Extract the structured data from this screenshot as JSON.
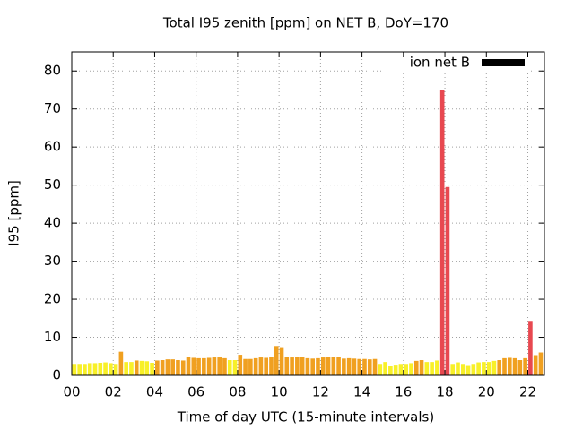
{
  "chart_data": {
    "type": "bar",
    "title": "Total I95 zenith [ppm] on NET B, DoY=170",
    "xlabel": "Time of day UTC (15-minute intervals)",
    "ylabel": "I95 [ppm]",
    "xlim": [
      0,
      22.8
    ],
    "ylim": [
      0,
      85
    ],
    "xticks": [
      {
        "value": 0,
        "label": "00"
      },
      {
        "value": 2,
        "label": "02"
      },
      {
        "value": 4,
        "label": "04"
      },
      {
        "value": 6,
        "label": "06"
      },
      {
        "value": 8,
        "label": "08"
      },
      10,
      12,
      14,
      16,
      18,
      20,
      22
    ],
    "yticks": [
      0,
      10,
      20,
      30,
      40,
      50,
      60,
      70,
      80
    ],
    "grid": true,
    "legend": "top right",
    "bar_width": 0.25,
    "x": [
      0,
      0.25,
      0.5,
      0.75,
      1,
      1.25,
      1.5,
      1.75,
      2,
      2.25,
      2.5,
      2.75,
      3,
      3.25,
      3.5,
      3.75,
      4,
      4.25,
      4.5,
      4.75,
      5,
      5.25,
      5.5,
      5.75,
      6,
      6.25,
      6.5,
      6.75,
      7,
      7.25,
      7.5,
      7.75,
      8,
      8.25,
      8.5,
      8.75,
      9,
      9.25,
      9.5,
      9.75,
      10,
      10.25,
      10.5,
      10.75,
      11,
      11.25,
      11.5,
      11.75,
      12,
      12.25,
      12.5,
      12.75,
      13,
      13.25,
      13.5,
      13.75,
      14,
      14.25,
      14.5,
      14.75,
      15,
      15.25,
      15.5,
      15.75,
      16,
      16.25,
      16.5,
      16.75,
      17,
      17.25,
      17.5,
      17.75,
      18,
      18.25,
      18.5,
      18.75,
      19,
      19.25,
      19.5,
      19.75,
      20,
      20.25,
      20.5,
      20.75,
      21,
      21.25,
      21.5,
      21.75,
      22,
      22.25,
      22.5,
      22.75
    ],
    "series": [
      {
        "name": "ion net B",
        "color": "#000000",
        "values": [
          3.0,
          3.0,
          3.0,
          3.2,
          3.2,
          3.3,
          3.4,
          3.2,
          3.0,
          6.2,
          3.5,
          3.5,
          3.9,
          3.8,
          3.7,
          3.3,
          3.9,
          4.0,
          4.2,
          4.2,
          4.0,
          3.9,
          4.9,
          4.6,
          4.5,
          4.5,
          4.6,
          4.7,
          4.7,
          4.5,
          4.0,
          4.0,
          5.4,
          4.3,
          4.3,
          4.5,
          4.7,
          4.6,
          4.9,
          7.7,
          7.4,
          4.8,
          4.7,
          4.8,
          4.9,
          4.5,
          4.4,
          4.5,
          4.7,
          4.8,
          4.8,
          4.9,
          4.4,
          4.5,
          4.4,
          4.3,
          4.3,
          4.2,
          4.3,
          3.0,
          3.5,
          2.5,
          2.8,
          3.0,
          3.0,
          3.2,
          3.8,
          4.0,
          3.5,
          3.5,
          3.9,
          75.0,
          49.5,
          3.0,
          3.4,
          3.0,
          2.7,
          3.0,
          3.4,
          3.5,
          3.5,
          3.8,
          4.0,
          4.5,
          4.6,
          4.5,
          4.0,
          4.5,
          14.3,
          5.3,
          6.0,
          4.3
        ],
        "colors": [
          "#f8f028",
          "#f8f028",
          "#f8f028",
          "#f8f028",
          "#f8f028",
          "#f8f028",
          "#f8f028",
          "#f8f028",
          "#f8f028",
          "#f0a020",
          "#f8f028",
          "#f8f028",
          "#f0a020",
          "#f8f028",
          "#f8f028",
          "#f8f028",
          "#f0a020",
          "#f0a020",
          "#f0a020",
          "#f0a020",
          "#f0a020",
          "#f0a020",
          "#f0a020",
          "#f0a020",
          "#f0a020",
          "#f0a020",
          "#f0a020",
          "#f0a020",
          "#f0a020",
          "#f0a020",
          "#f8f028",
          "#f8f028",
          "#f0a020",
          "#f0a020",
          "#f0a020",
          "#f0a020",
          "#f0a020",
          "#f0a020",
          "#f0a020",
          "#f0a020",
          "#f0a020",
          "#f0a020",
          "#f0a020",
          "#f0a020",
          "#f0a020",
          "#f0a020",
          "#f0a020",
          "#f0a020",
          "#f0a020",
          "#f0a020",
          "#f0a020",
          "#f0a020",
          "#f0a020",
          "#f0a020",
          "#f0a020",
          "#f0a020",
          "#f0a020",
          "#f0a020",
          "#f0a020",
          "#f8f028",
          "#f8f028",
          "#f8f028",
          "#f8f028",
          "#f8f028",
          "#f8f028",
          "#f8f028",
          "#f0a020",
          "#f0a020",
          "#f8f028",
          "#f8f028",
          "#f8f028",
          "#e84850",
          "#e84850",
          "#f8f028",
          "#f8f028",
          "#f8f028",
          "#f8f028",
          "#f8f028",
          "#f8f028",
          "#f8f028",
          "#f8f028",
          "#f8f028",
          "#f0a020",
          "#f0a020",
          "#f0a020",
          "#f0a020",
          "#f0a020",
          "#f0a020",
          "#e84850",
          "#f0a020",
          "#f0a020",
          "#f8f028"
        ]
      }
    ]
  }
}
